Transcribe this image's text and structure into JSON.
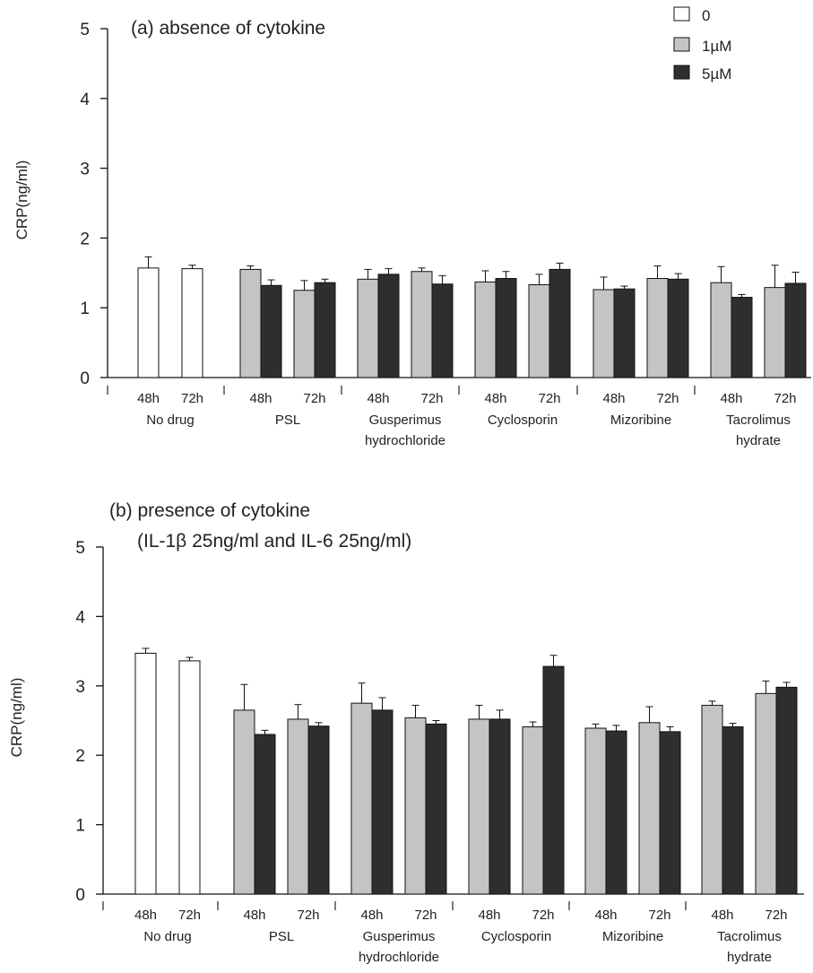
{
  "legend": {
    "entries": [
      {
        "label": "0",
        "color": "#ffffff"
      },
      {
        "label": "1µM",
        "color": "#c4c4c4"
      },
      {
        "label": "5µM",
        "color": "#2e2e2e"
      }
    ]
  },
  "chart_data": [
    {
      "type": "bar",
      "title": "(a) absence of cytokine",
      "subtitle": "",
      "ylabel": "CRP(ng/ml)",
      "ylim": [
        0,
        5
      ],
      "yticks": [
        0,
        1,
        2,
        3,
        4,
        5
      ],
      "groups": [
        {
          "name": [
            "No drug"
          ],
          "times": [
            {
              "label": "48h",
              "bars": [
                {
                  "series": "0",
                  "value": 1.57,
                  "err": 0.16
                }
              ]
            },
            {
              "label": "72h",
              "bars": [
                {
                  "series": "0",
                  "value": 1.56,
                  "err": 0.05
                }
              ]
            }
          ]
        },
        {
          "name": [
            "PSL"
          ],
          "times": [
            {
              "label": "48h",
              "bars": [
                {
                  "series": "1µM",
                  "value": 1.55,
                  "err": 0.05
                },
                {
                  "series": "5µM",
                  "value": 1.32,
                  "err": 0.08
                }
              ]
            },
            {
              "label": "72h",
              "bars": [
                {
                  "series": "1µM",
                  "value": 1.25,
                  "err": 0.14
                },
                {
                  "series": "5µM",
                  "value": 1.36,
                  "err": 0.05
                }
              ]
            }
          ]
        },
        {
          "name": [
            "Gusperimus",
            "hydrochloride"
          ],
          "times": [
            {
              "label": "48h",
              "bars": [
                {
                  "series": "1µM",
                  "value": 1.41,
                  "err": 0.14
                },
                {
                  "series": "5µM",
                  "value": 1.48,
                  "err": 0.08
                }
              ]
            },
            {
              "label": "72h",
              "bars": [
                {
                  "series": "1µM",
                  "value": 1.52,
                  "err": 0.05
                },
                {
                  "series": "5µM",
                  "value": 1.34,
                  "err": 0.12
                }
              ]
            }
          ]
        },
        {
          "name": [
            "Cyclosporin"
          ],
          "times": [
            {
              "label": "48h",
              "bars": [
                {
                  "series": "1µM",
                  "value": 1.37,
                  "err": 0.16
                },
                {
                  "series": "5µM",
                  "value": 1.42,
                  "err": 0.1
                }
              ]
            },
            {
              "label": "72h",
              "bars": [
                {
                  "series": "1µM",
                  "value": 1.33,
                  "err": 0.15
                },
                {
                  "series": "5µM",
                  "value": 1.55,
                  "err": 0.09
                }
              ]
            }
          ]
        },
        {
          "name": [
            "Mizoribine"
          ],
          "times": [
            {
              "label": "48h",
              "bars": [
                {
                  "series": "1µM",
                  "value": 1.26,
                  "err": 0.18
                },
                {
                  "series": "5µM",
                  "value": 1.27,
                  "err": 0.04
                }
              ]
            },
            {
              "label": "72h",
              "bars": [
                {
                  "series": "1µM",
                  "value": 1.42,
                  "err": 0.18
                },
                {
                  "series": "5µM",
                  "value": 1.41,
                  "err": 0.08
                }
              ]
            }
          ]
        },
        {
          "name": [
            "Tacrolimus",
            "hydrate"
          ],
          "times": [
            {
              "label": "48h",
              "bars": [
                {
                  "series": "1µM",
                  "value": 1.36,
                  "err": 0.23
                },
                {
                  "series": "5µM",
                  "value": 1.15,
                  "err": 0.04
                }
              ]
            },
            {
              "label": "72h",
              "bars": [
                {
                  "series": "1µM",
                  "value": 1.29,
                  "err": 0.32
                },
                {
                  "series": "5µM",
                  "value": 1.35,
                  "err": 0.16
                }
              ]
            }
          ]
        }
      ]
    },
    {
      "type": "bar",
      "title": "(b) presence of cytokine",
      "subtitle": "(IL-1β 25ng/ml and IL-6 25ng/ml)",
      "ylabel": "CRP(ng/ml)",
      "ylim": [
        0,
        5
      ],
      "yticks": [
        0,
        1,
        2,
        3,
        4,
        5
      ],
      "groups": [
        {
          "name": [
            "No drug"
          ],
          "times": [
            {
              "label": "48h",
              "bars": [
                {
                  "series": "0",
                  "value": 3.47,
                  "err": 0.07
                }
              ]
            },
            {
              "label": "72h",
              "bars": [
                {
                  "series": "0",
                  "value": 3.36,
                  "err": 0.05
                }
              ]
            }
          ]
        },
        {
          "name": [
            "PSL"
          ],
          "times": [
            {
              "label": "48h",
              "bars": [
                {
                  "series": "1µM",
                  "value": 2.65,
                  "err": 0.37
                },
                {
                  "series": "5µM",
                  "value": 2.3,
                  "err": 0.06
                }
              ]
            },
            {
              "label": "72h",
              "bars": [
                {
                  "series": "1µM",
                  "value": 2.52,
                  "err": 0.21
                },
                {
                  "series": "5µM",
                  "value": 2.42,
                  "err": 0.05
                }
              ]
            }
          ]
        },
        {
          "name": [
            "Gusperimus",
            "hydrochloride"
          ],
          "times": [
            {
              "label": "48h",
              "bars": [
                {
                  "series": "1µM",
                  "value": 2.75,
                  "err": 0.29
                },
                {
                  "series": "5µM",
                  "value": 2.65,
                  "err": 0.18
                }
              ]
            },
            {
              "label": "72h",
              "bars": [
                {
                  "series": "1µM",
                  "value": 2.54,
                  "err": 0.18
                },
                {
                  "series": "5µM",
                  "value": 2.45,
                  "err": 0.05
                }
              ]
            }
          ]
        },
        {
          "name": [
            "Cyclosporin"
          ],
          "times": [
            {
              "label": "48h",
              "bars": [
                {
                  "series": "1µM",
                  "value": 2.52,
                  "err": 0.2
                },
                {
                  "series": "5µM",
                  "value": 2.52,
                  "err": 0.13
                }
              ]
            },
            {
              "label": "72h",
              "bars": [
                {
                  "series": "1µM",
                  "value": 2.41,
                  "err": 0.07
                },
                {
                  "series": "5µM",
                  "value": 3.28,
                  "err": 0.16
                }
              ]
            }
          ]
        },
        {
          "name": [
            "Mizoribine"
          ],
          "times": [
            {
              "label": "48h",
              "bars": [
                {
                  "series": "1µM",
                  "value": 2.39,
                  "err": 0.06
                },
                {
                  "series": "5µM",
                  "value": 2.35,
                  "err": 0.08
                }
              ]
            },
            {
              "label": "72h",
              "bars": [
                {
                  "series": "1µM",
                  "value": 2.47,
                  "err": 0.23
                },
                {
                  "series": "5µM",
                  "value": 2.34,
                  "err": 0.07
                }
              ]
            }
          ]
        },
        {
          "name": [
            "Tacrolimus",
            "hydrate"
          ],
          "times": [
            {
              "label": "48h",
              "bars": [
                {
                  "series": "1µM",
                  "value": 2.72,
                  "err": 0.06
                },
                {
                  "series": "5µM",
                  "value": 2.41,
                  "err": 0.05
                }
              ]
            },
            {
              "label": "72h",
              "bars": [
                {
                  "series": "1µM",
                  "value": 2.89,
                  "err": 0.18
                },
                {
                  "series": "5µM",
                  "value": 2.98,
                  "err": 0.07
                }
              ]
            }
          ]
        }
      ]
    }
  ]
}
